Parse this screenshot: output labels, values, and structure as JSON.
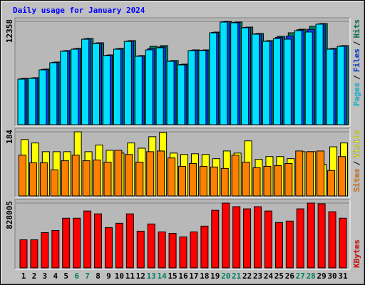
{
  "chart_data": {
    "type": "bar",
    "title": "Daily usage for January 2024",
    "legend_separator": "/",
    "categories": [
      "1",
      "2",
      "3",
      "4",
      "5",
      "6",
      "7",
      "8",
      "9",
      "10",
      "11",
      "12",
      "13",
      "14",
      "15",
      "16",
      "17",
      "18",
      "19",
      "20",
      "21",
      "22",
      "23",
      "24",
      "25",
      "26",
      "27",
      "28",
      "29",
      "30",
      "31"
    ],
    "category_colors": [
      "#000000",
      "#000000",
      "#000000",
      "#000000",
      "#000000",
      "#00805c",
      "#00805c",
      "#000000",
      "#000000",
      "#000000",
      "#000000",
      "#000000",
      "#00805c",
      "#00805c",
      "#000000",
      "#000000",
      "#000000",
      "#000000",
      "#000000",
      "#00805c",
      "#00805c",
      "#000000",
      "#000000",
      "#000000",
      "#000000",
      "#000000",
      "#00805c",
      "#00805c",
      "#000000",
      "#000000",
      "#000000"
    ],
    "panels": [
      {
        "ylim": [
          0,
          12358
        ],
        "yticks": [
          12358
        ],
        "grid": true,
        "series": [
          {
            "name": "Pages",
            "color": "#00e0ff",
            "values": [
              5450,
              5540,
              6560,
              7410,
              8780,
              9030,
              10220,
              9710,
              8260,
              9030,
              9960,
              8180,
              8949,
              9200,
              7580,
              7150,
              8860,
              8860,
              10990,
              12270,
              12190,
              11590,
              10820,
              9970,
              10300,
              10227,
              11250,
              11080,
              12020,
              9030,
              9370
            ]
          },
          {
            "name": "Files",
            "color": "#0040ff",
            "values": [
              5500,
              5590,
              6610,
              7460,
              8830,
              9080,
              10270,
              9760,
              8310,
              9080,
              10010,
              8230,
              9100,
              9300,
              7630,
              7200,
              8910,
              8910,
              11040,
              12320,
              12230,
              11640,
              10870,
              10010,
              10450,
              10600,
              11350,
              11400,
              12060,
              9080,
              9420
            ]
          },
          {
            "name": "Hits",
            "color": "#00805c",
            "values": [
              5540,
              5625,
              6648,
              7500,
              8864,
              9120,
              10313,
              9801,
              8352,
              9120,
              10057,
              8267,
              9375,
              9460,
              7671,
              7244,
              8949,
              8949,
              11080,
              12358,
              12273,
              11676,
              10909,
              10057,
              10568,
              10994,
              11420,
              11761,
              12102,
              9120,
              9460
            ]
          }
        ]
      },
      {
        "ylim": [
          0,
          184
        ],
        "yticks": [
          184
        ],
        "grid": true,
        "series": [
          {
            "name": "Sites",
            "color": "#ff8000",
            "values": [
              117,
              95,
              95,
              75,
              101,
              117,
              101,
              103,
              97,
              131,
              119,
              97,
              127,
              129,
              109,
              85,
              93,
              85,
              83,
              79,
              117,
              97,
              81,
              85,
              87,
              93,
              129,
              127,
              129,
              73,
              113
            ]
          },
          {
            "name": "Visits",
            "color": "#ffff00",
            "values": [
              162,
              152,
              127,
              127,
              127,
              184,
              127,
              146,
              131,
              123,
              152,
              137,
              170,
              182,
              123,
              119,
              121,
              119,
              107,
              129,
              123,
              158,
              105,
              113,
              113,
              107,
              127,
              127,
              91,
              141,
              152
            ]
          }
        ]
      },
      {
        "ylim": [
          0,
          828005
        ],
        "yticks": [
          828005
        ],
        "grid": true,
        "series": [
          {
            "name": "KBytes",
            "color": "#ff0000",
            "values": [
              358800,
              358800,
              450800,
              478400,
              634800,
              634800,
              726800,
              690000,
              515200,
              570400,
              690000,
              469200,
              561200,
              460000,
              441600,
              395600,
              460000,
              533600,
              736000,
              828005,
              782000,
              754400,
              782000,
              726800,
              579600,
              598000,
              754400,
              828000,
              818800,
              717600,
              634800
            ]
          }
        ]
      }
    ]
  }
}
